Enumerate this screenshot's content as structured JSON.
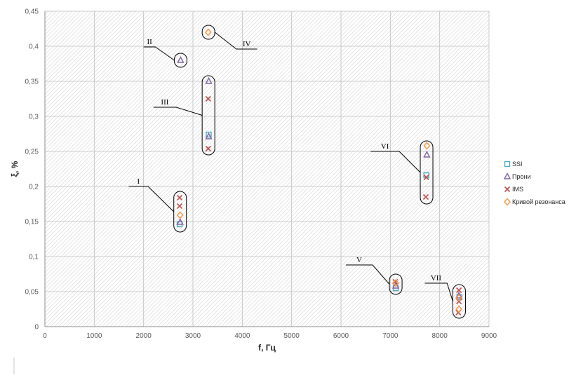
{
  "chart_data": {
    "type": "scatter",
    "xlabel": "f, Гц",
    "ylabel": "ξ, %",
    "xlim": [
      0,
      9000
    ],
    "ylim": [
      0,
      0.45
    ],
    "x_ticks": [
      "0",
      "1000",
      "2000",
      "3000",
      "4000",
      "5000",
      "6000",
      "7000",
      "8000",
      "9000"
    ],
    "y_ticks": [
      "0",
      "0,05",
      "0,1",
      "0,15",
      "0,2",
      "0,25",
      "0,3",
      "0,35",
      "0,4",
      "0,45"
    ],
    "grid": true,
    "legend_position": "right",
    "series": [
      {
        "name": "SSI",
        "marker": "square",
        "color": "#4bacc6",
        "points": [
          [
            2730,
            0.146
          ],
          [
            3320,
            0.274
          ],
          [
            7110,
            0.055
          ],
          [
            7730,
            0.216
          ],
          [
            8400,
            0.042
          ]
        ]
      },
      {
        "name": "Прони",
        "marker": "triangle",
        "color": "#8064a2",
        "points": [
          [
            2740,
            0.149
          ],
          [
            2750,
            0.38
          ],
          [
            3320,
            0.35
          ],
          [
            3320,
            0.271
          ],
          [
            7110,
            0.058
          ],
          [
            7740,
            0.245
          ],
          [
            8390,
            0.044
          ]
        ]
      },
      {
        "name": "IMS",
        "marker": "x",
        "color": "#c0504d",
        "points": [
          [
            2730,
            0.184
          ],
          [
            2730,
            0.172
          ],
          [
            3310,
            0.325
          ],
          [
            3310,
            0.254
          ],
          [
            7100,
            0.064
          ],
          [
            7730,
            0.213
          ],
          [
            7720,
            0.185
          ],
          [
            8390,
            0.052
          ],
          [
            8390,
            0.036
          ],
          [
            8380,
            0.02
          ]
        ]
      },
      {
        "name": "Кривой резонанса",
        "marker": "diamond",
        "color": "#f79646",
        "points": [
          [
            2740,
            0.159
          ],
          [
            3310,
            0.42
          ],
          [
            7110,
            0.062
          ],
          [
            7740,
            0.258
          ],
          [
            8390,
            0.041
          ],
          [
            8390,
            0.025
          ]
        ]
      }
    ],
    "groups": [
      {
        "label": "I",
        "box": {
          "x": 2740,
          "y0": 0.135,
          "y1": 0.193
        },
        "label_at": [
          1700,
          0.2
        ],
        "bend_at": [
          2090,
          0.2
        ]
      },
      {
        "label": "II",
        "box": {
          "x": 2750,
          "y0": 0.37,
          "y1": 0.39
        },
        "label_at": [
          2000,
          0.399
        ],
        "bend_at": [
          2240,
          0.399
        ]
      },
      {
        "label": "III",
        "box": {
          "x": 3315,
          "y0": 0.245,
          "y1": 0.358
        },
        "label_at": [
          2200,
          0.313
        ],
        "bend_at": [
          2660,
          0.313
        ]
      },
      {
        "label": "IV",
        "box": {
          "x": 3315,
          "y0": 0.41,
          "y1": 0.43
        },
        "label_at": [
          4300,
          0.396
        ],
        "bend_at": [
          3880,
          0.396
        ]
      },
      {
        "label": "V",
        "box": {
          "x": 7110,
          "y0": 0.046,
          "y1": 0.075
        },
        "label_at": [
          6100,
          0.088
        ],
        "bend_at": [
          6640,
          0.088
        ]
      },
      {
        "label": "VI",
        "box": {
          "x": 7735,
          "y0": 0.175,
          "y1": 0.265
        },
        "label_at": [
          6600,
          0.25
        ],
        "bend_at": [
          7180,
          0.25
        ]
      },
      {
        "label": "VII",
        "box": {
          "x": 8395,
          "y0": 0.012,
          "y1": 0.06
        },
        "label_at": [
          7700,
          0.062
        ],
        "bend_at": [
          8150,
          0.062
        ]
      }
    ]
  }
}
